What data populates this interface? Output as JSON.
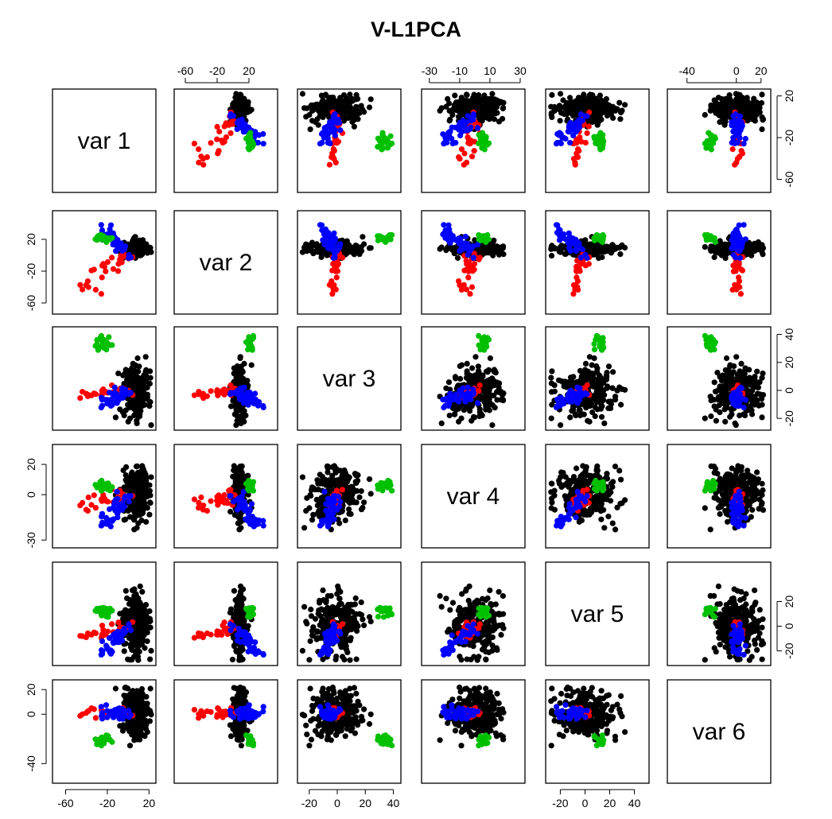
{
  "title": "V-L1PCA",
  "chart_data": {
    "type": "scatter",
    "title": "V-L1PCA",
    "variables": [
      "var 1",
      "var 2",
      "var 3",
      "var 4",
      "var 5",
      "var 6"
    ],
    "ranges": [
      [
        -68,
        22
      ],
      [
        -68,
        50
      ],
      [
        -25,
        42
      ],
      [
        -32,
        30
      ],
      [
        -28,
        48
      ],
      [
        -52,
        24
      ]
    ],
    "axes": {
      "top": {
        "2": {
          "ticks": [
            -60,
            -20,
            20
          ]
        },
        "4": {
          "ticks": [
            -30,
            -10,
            10,
            30
          ]
        },
        "6": {
          "ticks": [
            -40,
            0,
            20
          ]
        }
      },
      "bottom": {
        "1": {
          "ticks": [
            -60,
            -20,
            20
          ]
        },
        "3": {
          "ticks": [
            -20,
            0,
            20,
            40
          ]
        },
        "5": {
          "ticks": [
            -20,
            0,
            20,
            40
          ]
        }
      },
      "left": {
        "2": {
          "ticks": [
            20,
            -20,
            -60
          ]
        },
        "4": {
          "ticks": [
            20,
            0,
            -30
          ]
        },
        "6": {
          "ticks": [
            20,
            0,
            -40
          ]
        }
      },
      "right": {
        "1": {
          "ticks": [
            20,
            -20,
            -60
          ]
        },
        "3": {
          "ticks": [
            40,
            20,
            0,
            -20
          ]
        },
        "5": {
          "ticks": [
            20,
            0,
            -20
          ]
        }
      }
    },
    "colors": {
      "black": "#000000",
      "red": "#ff0000",
      "blue": "#0000ff",
      "green": "#00c000"
    },
    "clusters": [
      {
        "color": "black",
        "count": 240,
        "center": [
          8,
          8,
          0,
          0,
          0,
          0
        ],
        "spread": [
          6,
          4,
          9,
          9,
          12,
          10
        ]
      },
      {
        "color": "red",
        "count": 28,
        "center": [
          -20,
          -22,
          -2,
          -6,
          -4,
          0
        ],
        "spread": [
          20,
          20,
          6,
          8,
          6,
          6
        ],
        "spoke": [
          -45,
          -50,
          -3,
          -8,
          -10,
          1
        ]
      },
      {
        "color": "blue",
        "count": 40,
        "center": [
          -8,
          20,
          -4,
          -10,
          -12,
          3
        ],
        "spread": [
          10,
          12,
          8,
          8,
          6,
          8
        ],
        "spoke": [
          -25,
          35,
          -12,
          -20,
          -22,
          2
        ]
      },
      {
        "color": "green",
        "count": 20,
        "center": [
          -25,
          22,
          34,
          6,
          12,
          -22
        ],
        "spread": [
          4,
          3,
          3,
          2,
          2,
          2
        ]
      }
    ]
  }
}
